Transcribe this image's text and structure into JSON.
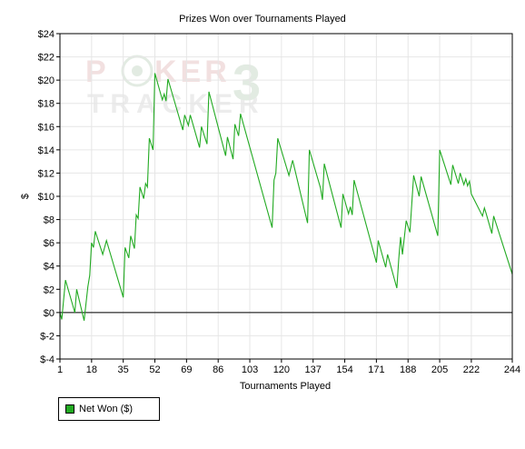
{
  "chart_data": {
    "type": "line",
    "title": "Prizes Won over Tournaments Played",
    "xlabel": "Tournaments Played",
    "ylabel": "$",
    "xlim": [
      1,
      244
    ],
    "ylim": [
      -4,
      24
    ],
    "x_ticks": [
      1,
      18,
      35,
      52,
      69,
      86,
      103,
      120,
      137,
      154,
      171,
      188,
      205,
      222,
      244
    ],
    "y_ticks": [
      -4,
      -2,
      0,
      2,
      4,
      6,
      8,
      10,
      12,
      14,
      16,
      18,
      20,
      22,
      24
    ],
    "y_tick_labels": [
      "$-4",
      "$-2",
      "$0",
      "$2",
      "$4",
      "$6",
      "$8",
      "$10",
      "$12",
      "$14",
      "$16",
      "$18",
      "$20",
      "$22",
      "$24"
    ],
    "grid": true,
    "legend_position": "bottom-left",
    "watermark": "POKER TRACKER 3",
    "series": [
      {
        "name": "Net Won ($)",
        "color": "#22aa22",
        "points": [
          [
            1,
            0.0
          ],
          [
            2,
            -0.6
          ],
          [
            4,
            2.8
          ],
          [
            9,
            0.0
          ],
          [
            10,
            2.0
          ],
          [
            14,
            -0.7
          ],
          [
            16,
            2.2
          ],
          [
            17,
            3.2
          ],
          [
            18,
            6.0
          ],
          [
            19,
            5.6
          ],
          [
            20,
            7.0
          ],
          [
            24,
            5.0
          ],
          [
            26,
            6.2
          ],
          [
            35,
            1.3
          ],
          [
            36,
            5.6
          ],
          [
            38,
            4.7
          ],
          [
            39,
            6.6
          ],
          [
            41,
            5.5
          ],
          [
            42,
            8.4
          ],
          [
            43,
            8.1
          ],
          [
            44,
            10.8
          ],
          [
            45,
            10.3
          ],
          [
            46,
            9.8
          ],
          [
            47,
            11.1
          ],
          [
            48,
            10.8
          ],
          [
            49,
            15.0
          ],
          [
            51,
            14.0
          ],
          [
            52,
            20.6
          ],
          [
            56,
            18.3
          ],
          [
            57,
            18.8
          ],
          [
            58,
            18.2
          ],
          [
            59,
            20.1
          ],
          [
            67,
            15.7
          ],
          [
            68,
            17.0
          ],
          [
            70,
            16.1
          ],
          [
            71,
            17.0
          ],
          [
            76,
            14.2
          ],
          [
            77,
            16.0
          ],
          [
            80,
            14.5
          ],
          [
            81,
            19.0
          ],
          [
            90,
            13.5
          ],
          [
            91,
            15.1
          ],
          [
            94,
            13.2
          ],
          [
            95,
            16.2
          ],
          [
            97,
            15.2
          ],
          [
            98,
            17.1
          ],
          [
            115,
            7.3
          ],
          [
            116,
            11.4
          ],
          [
            117,
            12.0
          ],
          [
            118,
            15.0
          ],
          [
            124,
            11.8
          ],
          [
            126,
            13.1
          ],
          [
            134,
            7.7
          ],
          [
            135,
            14.0
          ],
          [
            141,
            10.7
          ],
          [
            142,
            9.7
          ],
          [
            143,
            12.8
          ],
          [
            152,
            7.3
          ],
          [
            153,
            10.2
          ],
          [
            156,
            8.5
          ],
          [
            157,
            9.1
          ],
          [
            158,
            8.4
          ],
          [
            159,
            11.4
          ],
          [
            171,
            4.3
          ],
          [
            172,
            6.2
          ],
          [
            176,
            3.9
          ],
          [
            177,
            5.0
          ],
          [
            182,
            2.1
          ],
          [
            183,
            4.6
          ],
          [
            184,
            6.5
          ],
          [
            185,
            5.0
          ],
          [
            187,
            7.9
          ],
          [
            189,
            6.9
          ],
          [
            191,
            11.8
          ],
          [
            194,
            10.0
          ],
          [
            195,
            11.7
          ],
          [
            204,
            6.6
          ],
          [
            205,
            14.0
          ],
          [
            211,
            11.0
          ],
          [
            212,
            12.7
          ],
          [
            215,
            11.1
          ],
          [
            216,
            12.0
          ],
          [
            218,
            11.0
          ],
          [
            219,
            11.5
          ],
          [
            220,
            10.9
          ],
          [
            221,
            11.3
          ],
          [
            222,
            10.2
          ],
          [
            228,
            8.3
          ],
          [
            229,
            9.0
          ],
          [
            230,
            8.5
          ],
          [
            233,
            6.8
          ],
          [
            234,
            8.3
          ],
          [
            244,
            3.3
          ]
        ]
      }
    ]
  }
}
